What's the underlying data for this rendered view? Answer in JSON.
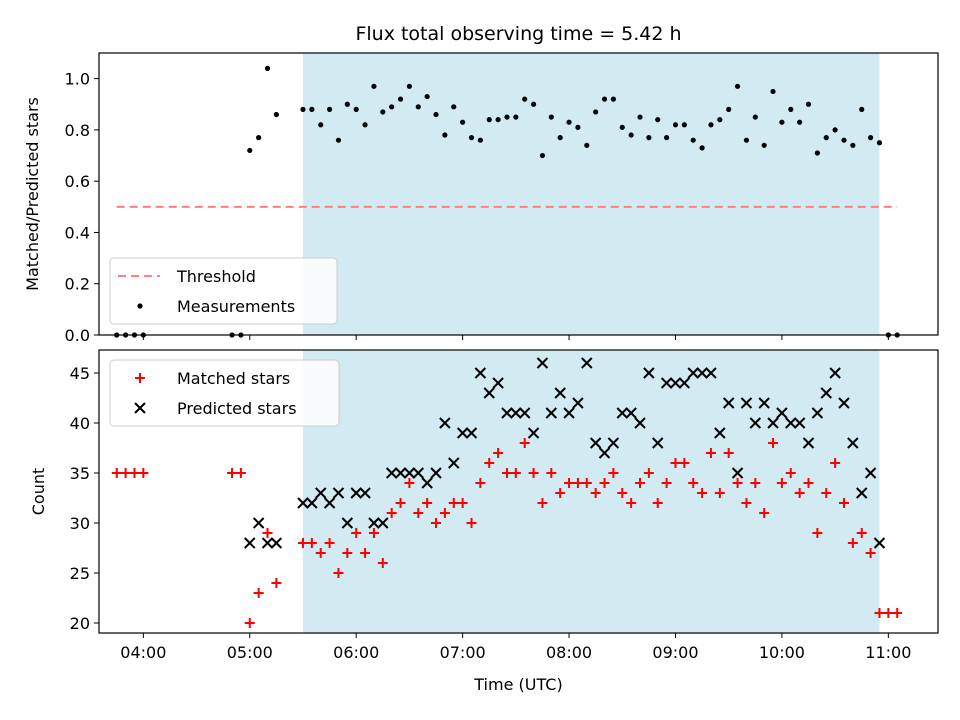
{
  "chart_data": [
    {
      "type": "scatter",
      "title": "Flux total observing time = 5.42 h",
      "xlabel": "",
      "ylabel": "Matched/Predicted stars",
      "xlim": [
        "03:35",
        "11:28"
      ],
      "ylim": [
        0,
        1.1
      ],
      "yticks": [
        "0.0",
        "0.2",
        "0.4",
        "0.6",
        "0.8",
        "1.0"
      ],
      "xticks": [
        "04:00",
        "05:00",
        "06:00",
        "07:00",
        "08:00",
        "09:00",
        "10:00",
        "11:00"
      ],
      "shaded_interval": [
        "05:30",
        "10:55"
      ],
      "shade_color": "#add8e6",
      "legend_position": "lower-left",
      "series": [
        {
          "name": "Threshold",
          "style": "dashed-line",
          "color": "#ff7f7f",
          "x": [
            "03:45",
            "11:05"
          ],
          "y": [
            0.5,
            0.5
          ]
        },
        {
          "name": "Measurements",
          "style": "dots",
          "color": "#000000",
          "x": [
            "03:45",
            "03:50",
            "03:55",
            "04:00",
            "04:50",
            "04:55",
            "05:00",
            "05:05",
            "05:10",
            "05:15",
            "05:30",
            "05:35",
            "05:40",
            "05:45",
            "05:50",
            "05:55",
            "06:00",
            "06:05",
            "06:10",
            "06:15",
            "06:20",
            "06:25",
            "06:30",
            "06:35",
            "06:40",
            "06:45",
            "06:50",
            "06:55",
            "07:00",
            "07:05",
            "07:10",
            "07:15",
            "07:20",
            "07:25",
            "07:30",
            "07:35",
            "07:40",
            "07:45",
            "07:50",
            "07:55",
            "08:00",
            "08:05",
            "08:10",
            "08:15",
            "08:20",
            "08:25",
            "08:30",
            "08:35",
            "08:40",
            "08:45",
            "08:50",
            "08:55",
            "09:00",
            "09:05",
            "09:10",
            "09:15",
            "09:20",
            "09:25",
            "09:30",
            "09:35",
            "09:40",
            "09:45",
            "09:50",
            "09:55",
            "10:00",
            "10:05",
            "10:10",
            "10:15",
            "10:20",
            "10:25",
            "10:30",
            "10:35",
            "10:40",
            "10:45",
            "10:50",
            "10:55",
            "11:00",
            "11:05"
          ],
          "y": [
            0,
            0,
            0,
            0,
            0,
            0,
            0.72,
            0.77,
            1.04,
            0.86,
            0.88,
            0.88,
            0.82,
            0.88,
            0.76,
            0.9,
            0.88,
            0.82,
            0.97,
            0.87,
            0.89,
            0.92,
            0.97,
            0.89,
            0.93,
            0.86,
            0.78,
            0.89,
            0.83,
            0.77,
            0.76,
            0.84,
            0.84,
            0.85,
            0.85,
            0.92,
            0.9,
            0.7,
            0.85,
            0.77,
            0.83,
            0.81,
            0.74,
            0.87,
            0.92,
            0.92,
            0.81,
            0.78,
            0.85,
            0.77,
            0.84,
            0.77,
            0.82,
            0.82,
            0.76,
            0.73,
            0.82,
            0.84,
            0.88,
            0.97,
            0.76,
            0.85,
            0.74,
            0.95,
            0.83,
            0.88,
            0.83,
            0.9,
            0.71,
            0.77,
            0.8,
            0.76,
            0.74,
            0.88,
            0.77,
            0.75,
            0,
            0
          ]
        }
      ]
    },
    {
      "type": "scatter",
      "title": "",
      "xlabel": "Time (UTC)",
      "ylabel": "Count",
      "xlim": [
        "03:35",
        "11:28"
      ],
      "ylim": [
        19,
        47.3
      ],
      "yticks": [
        "20",
        "25",
        "30",
        "35",
        "40",
        "45"
      ],
      "xticks": [
        "04:00",
        "05:00",
        "06:00",
        "07:00",
        "08:00",
        "09:00",
        "10:00",
        "11:00"
      ],
      "shaded_interval": [
        "05:30",
        "10:55"
      ],
      "shade_color": "#add8e6",
      "legend_position": "upper-left",
      "series": [
        {
          "name": "Matched stars",
          "marker": "plus",
          "color": "#ff0000",
          "x": [
            "03:45",
            "03:50",
            "03:55",
            "04:00",
            "04:50",
            "04:55",
            "05:00",
            "05:05",
            "05:10",
            "05:15",
            "05:30",
            "05:35",
            "05:40",
            "05:45",
            "05:50",
            "05:55",
            "06:00",
            "06:05",
            "06:10",
            "06:15",
            "06:20",
            "06:25",
            "06:30",
            "06:35",
            "06:40",
            "06:45",
            "06:50",
            "06:55",
            "07:00",
            "07:05",
            "07:10",
            "07:15",
            "07:20",
            "07:25",
            "07:30",
            "07:35",
            "07:40",
            "07:45",
            "07:50",
            "07:55",
            "08:00",
            "08:05",
            "08:10",
            "08:15",
            "08:20",
            "08:25",
            "08:30",
            "08:35",
            "08:40",
            "08:45",
            "08:50",
            "08:55",
            "09:00",
            "09:05",
            "09:10",
            "09:15",
            "09:20",
            "09:25",
            "09:30",
            "09:35",
            "09:40",
            "09:45",
            "09:50",
            "09:55",
            "10:00",
            "10:05",
            "10:10",
            "10:15",
            "10:20",
            "10:25",
            "10:30",
            "10:35",
            "10:40",
            "10:45",
            "10:50",
            "10:55",
            "11:00",
            "11:05"
          ],
          "y": [
            35,
            35,
            35,
            35,
            35,
            35,
            20,
            23,
            29,
            24,
            28,
            28,
            27,
            28,
            25,
            27,
            29,
            27,
            29,
            26,
            31,
            32,
            34,
            31,
            32,
            30,
            31,
            32,
            32,
            30,
            34,
            36,
            37,
            35,
            35,
            38,
            35,
            32,
            35,
            33,
            34,
            34,
            34,
            33,
            34,
            35,
            33,
            32,
            34,
            35,
            32,
            34,
            36,
            36,
            34,
            33,
            37,
            33,
            37,
            34,
            32,
            34,
            31,
            38,
            34,
            35,
            33,
            34,
            29,
            33,
            36,
            32,
            28,
            29,
            27,
            21,
            21,
            21
          ]
        },
        {
          "name": "Predicted stars",
          "marker": "x",
          "color": "#000000",
          "x": [
            "05:00",
            "05:05",
            "05:10",
            "05:15",
            "05:30",
            "05:35",
            "05:40",
            "05:45",
            "05:50",
            "05:55",
            "06:00",
            "06:05",
            "06:10",
            "06:15",
            "06:20",
            "06:25",
            "06:30",
            "06:35",
            "06:40",
            "06:45",
            "06:50",
            "06:55",
            "07:00",
            "07:05",
            "07:10",
            "07:15",
            "07:20",
            "07:25",
            "07:30",
            "07:35",
            "07:40",
            "07:45",
            "07:50",
            "07:55",
            "08:00",
            "08:05",
            "08:10",
            "08:15",
            "08:20",
            "08:25",
            "08:30",
            "08:35",
            "08:40",
            "08:45",
            "08:50",
            "08:55",
            "09:00",
            "09:05",
            "09:10",
            "09:15",
            "09:20",
            "09:25",
            "09:30",
            "09:35",
            "09:40",
            "09:45",
            "09:50",
            "09:55",
            "10:00",
            "10:05",
            "10:10",
            "10:15",
            "10:20",
            "10:25",
            "10:30",
            "10:35",
            "10:40",
            "10:45",
            "10:50",
            "10:55"
          ],
          "y": [
            28,
            30,
            28,
            28,
            32,
            32,
            33,
            32,
            33,
            30,
            33,
            33,
            30,
            30,
            35,
            35,
            35,
            35,
            34,
            35,
            40,
            36,
            39,
            39,
            45,
            43,
            44,
            41,
            41,
            41,
            39,
            46,
            41,
            43,
            41,
            42,
            46,
            38,
            37,
            38,
            41,
            41,
            40,
            45,
            38,
            44,
            44,
            44,
            45,
            45,
            45,
            39,
            42,
            35,
            42,
            40,
            42,
            40,
            41,
            40,
            40,
            38,
            41,
            43,
            45,
            42,
            38,
            33,
            35,
            28
          ]
        }
      ]
    }
  ]
}
